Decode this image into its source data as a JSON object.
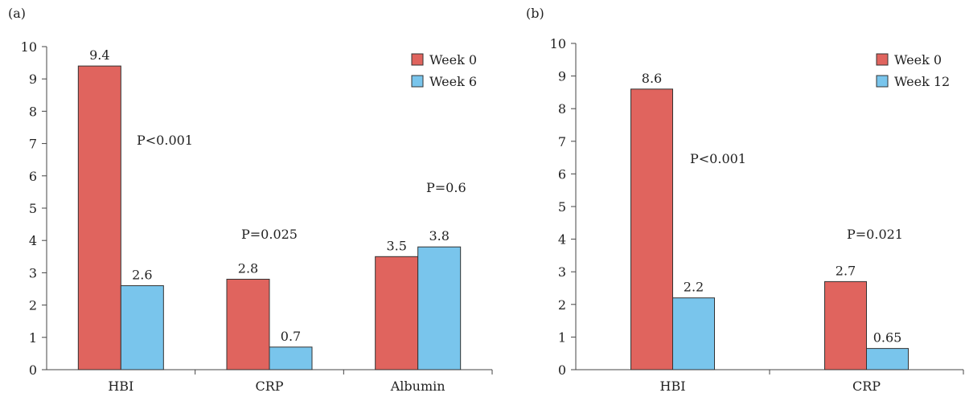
{
  "colors": {
    "week0": "#e0645e",
    "followup": "#79c5ec",
    "axis": "#444444"
  },
  "chart_data": [
    {
      "panel_label": "(a)",
      "type": "bar",
      "categories": [
        "HBI",
        "CRP",
        "Albumin"
      ],
      "series": [
        {
          "name": "Week 0",
          "values": [
            9.4,
            2.8,
            3.5
          ],
          "labels": [
            "9.4",
            "2.8",
            "3.5"
          ]
        },
        {
          "name": "Week 6",
          "values": [
            2.6,
            0.7,
            3.8
          ],
          "labels": [
            "2.6",
            "0.7",
            "3.8"
          ]
        }
      ],
      "p_values": [
        "P<0.001",
        "P=0.025",
        "P=0.6"
      ],
      "ylim": [
        0,
        10
      ],
      "yticks": [
        "0",
        "1",
        "2",
        "3",
        "4",
        "5",
        "6",
        "7",
        "8",
        "9",
        "10"
      ],
      "legend_position": "top-right"
    },
    {
      "panel_label": "(b)",
      "type": "bar",
      "categories": [
        "HBI",
        "CRP"
      ],
      "series": [
        {
          "name": "Week 0",
          "values": [
            8.6,
            2.7
          ],
          "labels": [
            "8.6",
            "2.7"
          ]
        },
        {
          "name": "Week 12",
          "values": [
            2.2,
            0.65
          ],
          "labels": [
            "2.2",
            "0.65"
          ]
        }
      ],
      "p_values": [
        "P<0.001",
        "P=0.021"
      ],
      "ylim": [
        0,
        10
      ],
      "yticks": [
        "0",
        "1",
        "2",
        "3",
        "4",
        "5",
        "6",
        "7",
        "8",
        "9",
        "10"
      ],
      "legend_position": "top-right"
    }
  ]
}
